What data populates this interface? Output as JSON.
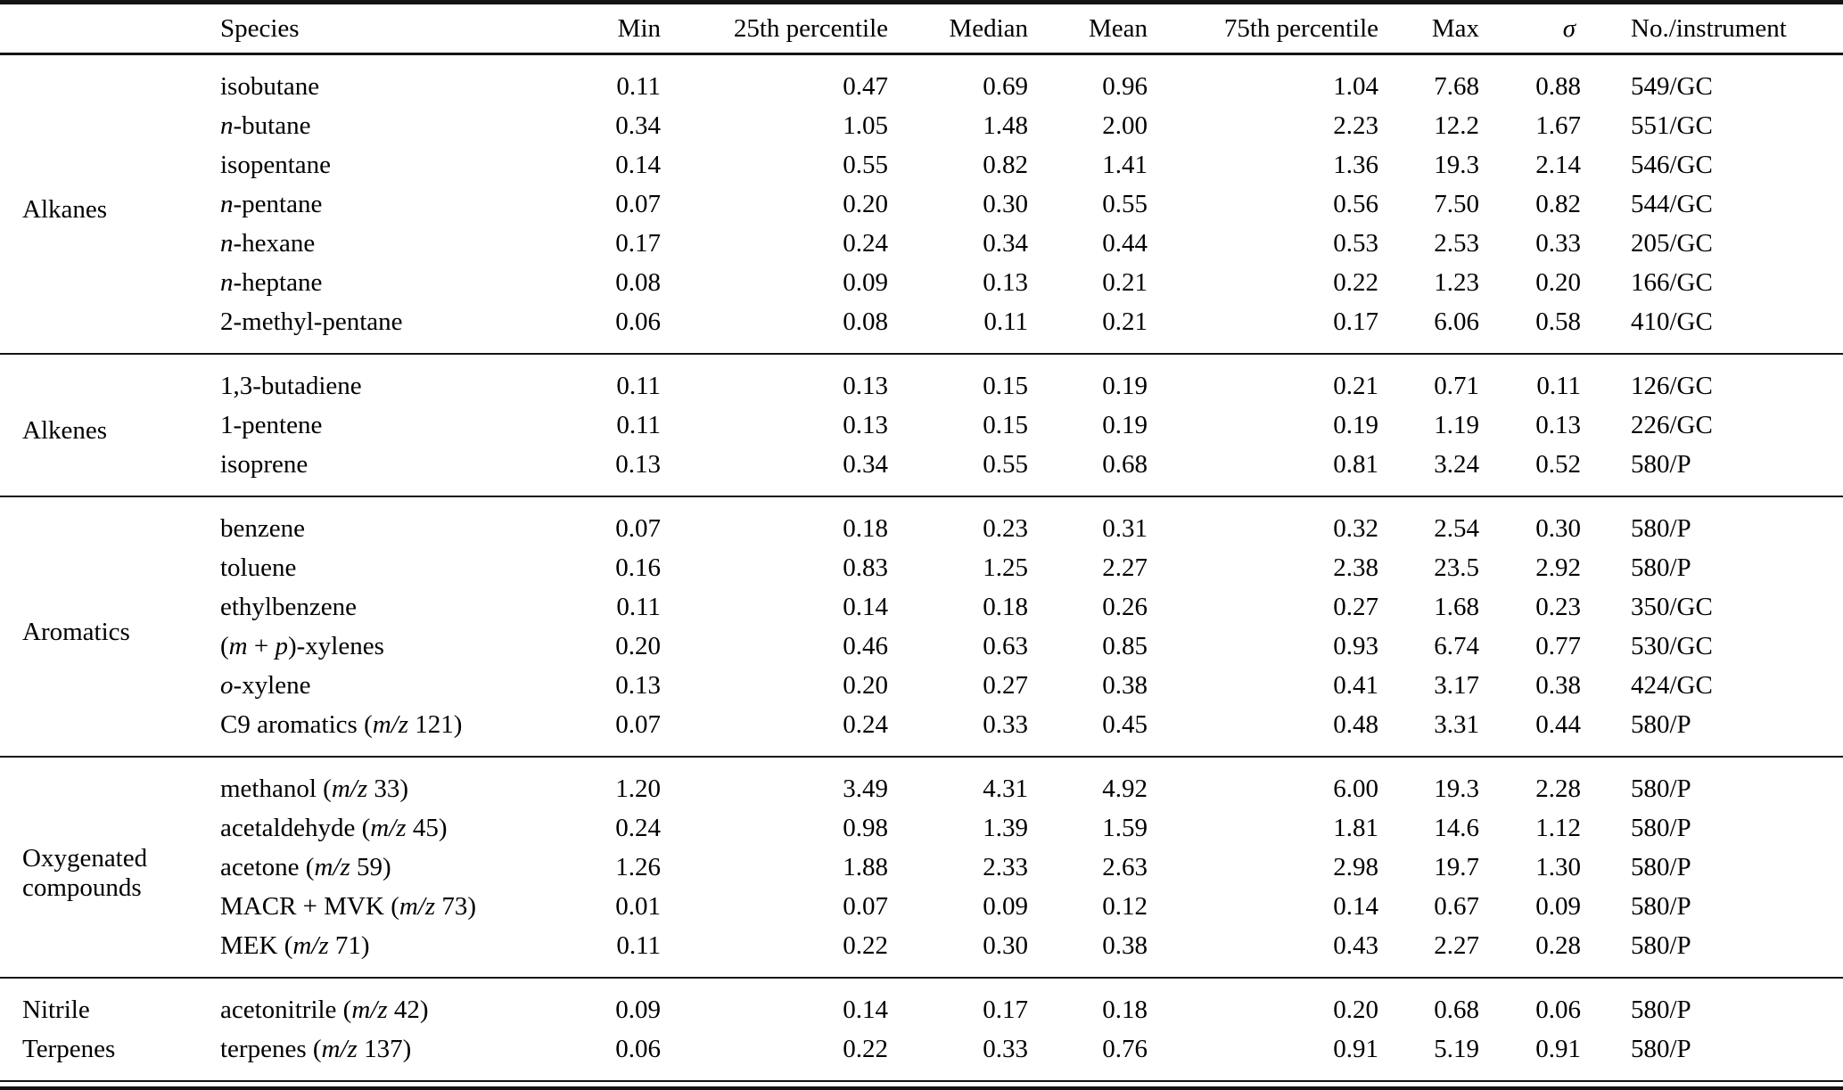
{
  "table": {
    "columns": {
      "group": "",
      "species": "Species",
      "min": "Min",
      "p25": "25th percentile",
      "median": "Median",
      "mean": "Mean",
      "p75": "75th percentile",
      "max": "Max",
      "sigma": "σ",
      "count": "No./instrument"
    },
    "groups": [
      {
        "label": "Alkanes",
        "rows": [
          {
            "species": "isobutane",
            "min": "0.11",
            "p25": "0.47",
            "median": "0.69",
            "mean": "0.96",
            "p75": "1.04",
            "max": "7.68",
            "sigma": "0.88",
            "count": "549/GC"
          },
          {
            "species": "*n*-butane",
            "min": "0.34",
            "p25": "1.05",
            "median": "1.48",
            "mean": "2.00",
            "p75": "2.23",
            "max": "12.2",
            "sigma": "1.67",
            "count": "551/GC"
          },
          {
            "species": "isopentane",
            "min": "0.14",
            "p25": "0.55",
            "median": "0.82",
            "mean": "1.41",
            "p75": "1.36",
            "max": "19.3",
            "sigma": "2.14",
            "count": "546/GC"
          },
          {
            "species": "*n*-pentane",
            "min": "0.07",
            "p25": "0.20",
            "median": "0.30",
            "mean": "0.55",
            "p75": "0.56",
            "max": "7.50",
            "sigma": "0.82",
            "count": "544/GC"
          },
          {
            "species": "*n*-hexane",
            "min": "0.17",
            "p25": "0.24",
            "median": "0.34",
            "mean": "0.44",
            "p75": "0.53",
            "max": "2.53",
            "sigma": "0.33",
            "count": "205/GC"
          },
          {
            "species": "*n*-heptane",
            "min": "0.08",
            "p25": "0.09",
            "median": "0.13",
            "mean": "0.21",
            "p75": "0.22",
            "max": "1.23",
            "sigma": "0.20",
            "count": "166/GC"
          },
          {
            "species": "2-methyl-pentane",
            "min": "0.06",
            "p25": "0.08",
            "median": "0.11",
            "mean": "0.21",
            "p75": "0.17",
            "max": "6.06",
            "sigma": "0.58",
            "count": "410/GC"
          }
        ]
      },
      {
        "label": "Alkenes",
        "rows": [
          {
            "species": "1,3-butadiene",
            "min": "0.11",
            "p25": "0.13",
            "median": "0.15",
            "mean": "0.19",
            "p75": "0.21",
            "max": "0.71",
            "sigma": "0.11",
            "count": "126/GC"
          },
          {
            "species": "1-pentene",
            "min": "0.11",
            "p25": "0.13",
            "median": "0.15",
            "mean": "0.19",
            "p75": "0.19",
            "max": "1.19",
            "sigma": "0.13",
            "count": "226/GC"
          },
          {
            "species": "isoprene",
            "min": "0.13",
            "p25": "0.34",
            "median": "0.55",
            "mean": "0.68",
            "p75": "0.81",
            "max": "3.24",
            "sigma": "0.52",
            "count": "580/P"
          }
        ]
      },
      {
        "label": "Aromatics",
        "rows": [
          {
            "species": "benzene",
            "min": "0.07",
            "p25": "0.18",
            "median": "0.23",
            "mean": "0.31",
            "p75": "0.32",
            "max": "2.54",
            "sigma": "0.30",
            "count": "580/P"
          },
          {
            "species": "toluene",
            "min": "0.16",
            "p25": "0.83",
            "median": "1.25",
            "mean": "2.27",
            "p75": "2.38",
            "max": "23.5",
            "sigma": "2.92",
            "count": "580/P"
          },
          {
            "species": "ethylbenzene",
            "min": "0.11",
            "p25": "0.14",
            "median": "0.18",
            "mean": "0.26",
            "p75": "0.27",
            "max": "1.68",
            "sigma": "0.23",
            "count": "350/GC"
          },
          {
            "species": "(*m* + *p*)-xylenes",
            "min": "0.20",
            "p25": "0.46",
            "median": "0.63",
            "mean": "0.85",
            "p75": "0.93",
            "max": "6.74",
            "sigma": "0.77",
            "count": "530/GC"
          },
          {
            "species": "*o*-xylene",
            "min": "0.13",
            "p25": "0.20",
            "median": "0.27",
            "mean": "0.38",
            "p75": "0.41",
            "max": "3.17",
            "sigma": "0.38",
            "count": "424/GC"
          },
          {
            "species": "C9 aromatics (*m/z* 121)",
            "min": "0.07",
            "p25": "0.24",
            "median": "0.33",
            "mean": "0.45",
            "p75": "0.48",
            "max": "3.31",
            "sigma": "0.44",
            "count": "580/P"
          }
        ]
      },
      {
        "label": "Oxygenated compounds",
        "rows": [
          {
            "species": "methanol (*m/z* 33)",
            "min": "1.20",
            "p25": "3.49",
            "median": "4.31",
            "mean": "4.92",
            "p75": "6.00",
            "max": "19.3",
            "sigma": "2.28",
            "count": "580/P"
          },
          {
            "species": "acetaldehyde (*m/z* 45)",
            "min": "0.24",
            "p25": "0.98",
            "median": "1.39",
            "mean": "1.59",
            "p75": "1.81",
            "max": "14.6",
            "sigma": "1.12",
            "count": "580/P"
          },
          {
            "species": "acetone (*m/z* 59)",
            "min": "1.26",
            "p25": "1.88",
            "median": "2.33",
            "mean": "2.63",
            "p75": "2.98",
            "max": "19.7",
            "sigma": "1.30",
            "count": "580/P"
          },
          {
            "species": "MACR + MVK (*m/z* 73)",
            "min": "0.01",
            "p25": "0.07",
            "median": "0.09",
            "mean": "0.12",
            "p75": "0.14",
            "max": "0.67",
            "sigma": "0.09",
            "count": "580/P"
          },
          {
            "species": "MEK (*m/z* 71)",
            "min": "0.11",
            "p25": "0.22",
            "median": "0.30",
            "mean": "0.38",
            "p75": "0.43",
            "max": "2.27",
            "sigma": "0.28",
            "count": "580/P"
          }
        ]
      },
      {
        "rows": [
          {
            "group": "Nitrile",
            "species": "acetonitrile (*m/z* 42)",
            "min": "0.09",
            "p25": "0.14",
            "median": "0.17",
            "mean": "0.18",
            "p75": "0.20",
            "max": "0.68",
            "sigma": "0.06",
            "count": "580/P"
          },
          {
            "group": "Terpenes",
            "species": "terpenes (*m/z* 137)",
            "min": "0.06",
            "p25": "0.22",
            "median": "0.33",
            "mean": "0.76",
            "p75": "0.91",
            "max": "5.19",
            "sigma": "0.91",
            "count": "580/P"
          }
        ]
      }
    ]
  }
}
